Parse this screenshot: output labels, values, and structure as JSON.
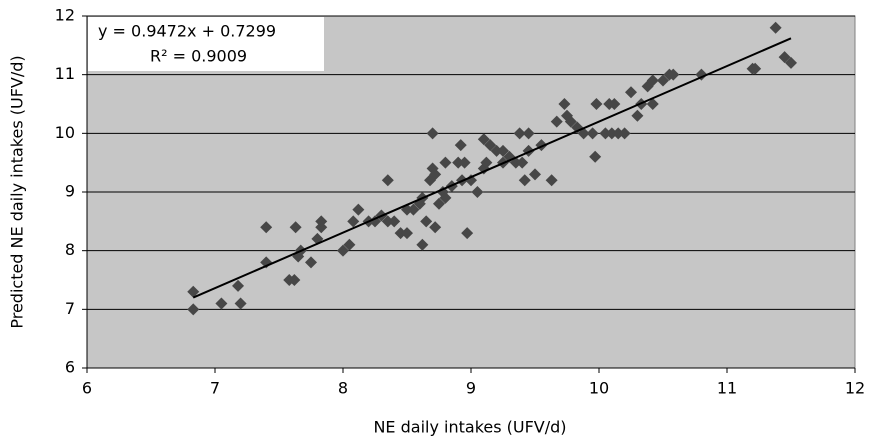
{
  "chart_data": {
    "type": "scatter",
    "x_label": "NE daily intakes (UFV/d)",
    "y_label": "Predicted NE daily intakes (UFV/d)",
    "annotations": [
      "y = 0.9472x + 0.7299",
      "R² = 0.9009"
    ],
    "xlim": [
      6,
      12
    ],
    "xticks": [
      6,
      7,
      8,
      9,
      10,
      11,
      12
    ],
    "ylim": [
      6,
      12
    ],
    "yticks": [
      6,
      7,
      8,
      9,
      10,
      11,
      12
    ],
    "grid": true,
    "background": "#c6c6c6",
    "color": "#474747",
    "x": [
      6.83,
      6.83,
      7.05,
      7.18,
      7.2,
      7.4,
      7.4,
      7.58,
      7.62,
      7.63,
      7.65,
      7.67,
      7.75,
      7.8,
      7.83,
      7.83,
      8.0,
      8.05,
      8.08,
      8.12,
      8.2,
      8.25,
      8.3,
      8.35,
      8.35,
      8.4,
      8.45,
      8.5,
      8.5,
      8.55,
      8.6,
      8.62,
      8.62,
      8.65,
      8.68,
      8.7,
      8.7,
      8.72,
      8.72,
      8.75,
      8.78,
      8.8,
      8.8,
      8.85,
      8.9,
      8.92,
      8.93,
      8.95,
      8.97,
      9.0,
      9.05,
      9.1,
      9.1,
      9.12,
      9.15,
      9.2,
      9.25,
      9.25,
      9.3,
      9.35,
      9.38,
      9.4,
      9.42,
      9.45,
      9.45,
      9.5,
      9.55,
      9.63,
      9.67,
      9.73,
      9.75,
      9.78,
      9.83,
      9.88,
      9.95,
      9.97,
      9.98,
      10.05,
      10.08,
      10.1,
      10.12,
      10.15,
      10.2,
      10.25,
      10.3,
      10.33,
      10.38,
      10.42,
      10.42,
      10.5,
      10.55,
      10.58,
      10.8,
      11.2,
      11.22,
      11.38,
      11.45,
      11.5
    ],
    "values": [
      7.3,
      7.0,
      7.1,
      7.4,
      7.1,
      7.8,
      8.4,
      7.5,
      7.5,
      8.4,
      7.9,
      8.0,
      7.8,
      8.2,
      8.4,
      8.5,
      8.0,
      8.1,
      8.5,
      8.7,
      8.5,
      8.5,
      8.6,
      9.2,
      8.5,
      8.5,
      8.3,
      8.7,
      8.3,
      8.7,
      8.8,
      8.9,
      8.1,
      8.5,
      9.2,
      9.4,
      10.0,
      8.4,
      9.3,
      8.8,
      9.0,
      8.9,
      9.5,
      9.1,
      9.5,
      9.8,
      9.2,
      9.5,
      8.3,
      9.2,
      9.0,
      9.4,
      9.9,
      9.5,
      9.8,
      9.7,
      9.7,
      9.5,
      9.6,
      9.5,
      10.0,
      9.5,
      9.2,
      9.7,
      10.0,
      9.3,
      9.8,
      9.2,
      10.2,
      10.5,
      10.3,
      10.2,
      10.1,
      10.0,
      10.0,
      9.6,
      10.5,
      10.0,
      10.5,
      10.0,
      10.5,
      10.0,
      10.0,
      10.7,
      10.3,
      10.5,
      10.8,
      10.9,
      10.5,
      10.9,
      11.0,
      11.0,
      11.0,
      11.1,
      11.1,
      11.8,
      11.3,
      11.2
    ],
    "trendline": {
      "color": "#000000",
      "x": [
        6.83,
        11.5
      ],
      "values": [
        7.2,
        11.62
      ]
    }
  }
}
